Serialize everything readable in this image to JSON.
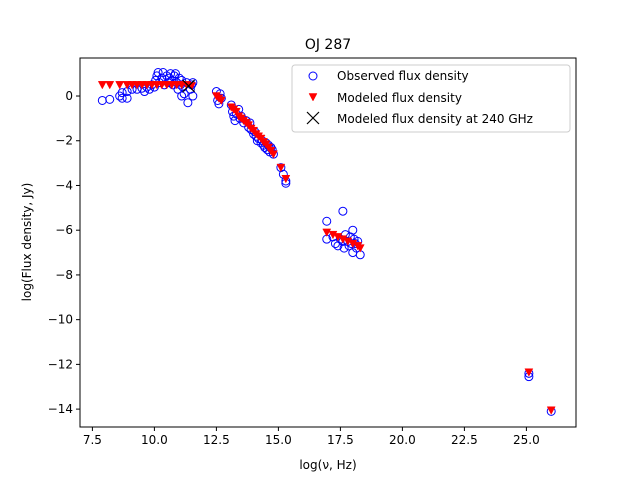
{
  "chart_data": {
    "type": "scatter",
    "title": "OJ 287",
    "xlabel": "log(ν, Hz)",
    "ylabel": "log(Flux density, Jy)",
    "xlim": [
      7.0,
      27.0
    ],
    "ylim": [
      -14.8,
      1.7
    ],
    "xticks": [
      7.5,
      10.0,
      12.5,
      15.0,
      17.5,
      20.0,
      22.5,
      25.0
    ],
    "yticks": [
      0,
      -2,
      -4,
      -6,
      -8,
      -10,
      -12,
      -14
    ],
    "grid": false,
    "legend_position": "top-right",
    "series": [
      {
        "name": "Observed flux density",
        "marker": "open-circle",
        "color": "#0000ff",
        "points": [
          [
            7.9,
            -0.2
          ],
          [
            8.2,
            -0.15
          ],
          [
            8.6,
            0.0
          ],
          [
            8.7,
            -0.1
          ],
          [
            8.9,
            -0.1
          ],
          [
            8.7,
            0.15
          ],
          [
            8.9,
            0.2
          ],
          [
            9.1,
            0.3
          ],
          [
            9.3,
            0.3
          ],
          [
            9.5,
            0.35
          ],
          [
            9.6,
            0.2
          ],
          [
            9.7,
            0.4
          ],
          [
            9.8,
            0.3
          ],
          [
            9.9,
            0.5
          ],
          [
            10.0,
            0.4
          ],
          [
            10.05,
            0.7
          ],
          [
            10.1,
            0.9
          ],
          [
            10.15,
            1.05
          ],
          [
            10.2,
            0.6
          ],
          [
            10.3,
            0.8
          ],
          [
            10.35,
            1.05
          ],
          [
            10.4,
            0.5
          ],
          [
            10.5,
            0.9
          ],
          [
            10.55,
            0.6
          ],
          [
            10.6,
            0.8
          ],
          [
            10.65,
            1.0
          ],
          [
            10.7,
            0.7
          ],
          [
            10.75,
            0.5
          ],
          [
            10.8,
            0.9
          ],
          [
            10.85,
            1.0
          ],
          [
            10.9,
            0.6
          ],
          [
            11.0,
            0.8
          ],
          [
            11.05,
            0.5
          ],
          [
            11.1,
            0.7
          ],
          [
            11.15,
            0.4
          ],
          [
            11.2,
            0.1
          ],
          [
            11.3,
            0.6
          ],
          [
            11.35,
            -0.3
          ],
          [
            11.45,
            0.3
          ],
          [
            11.5,
            0.5
          ],
          [
            11.55,
            0.6
          ],
          [
            11.55,
            0.0
          ],
          [
            11.1,
            0.0
          ],
          [
            10.95,
            0.3
          ],
          [
            12.5,
            0.2
          ],
          [
            12.55,
            -0.2
          ],
          [
            12.6,
            -0.35
          ],
          [
            12.65,
            0.1
          ],
          [
            12.7,
            -0.1
          ],
          [
            13.1,
            -0.4
          ],
          [
            13.15,
            -0.7
          ],
          [
            13.2,
            -0.9
          ],
          [
            13.25,
            -1.1
          ],
          [
            13.3,
            -0.8
          ],
          [
            13.4,
            -0.6
          ],
          [
            13.45,
            -1.0
          ],
          [
            13.5,
            -0.9
          ],
          [
            13.6,
            -1.2
          ],
          [
            13.7,
            -1.1
          ],
          [
            13.8,
            -1.4
          ],
          [
            13.85,
            -1.2
          ],
          [
            13.9,
            -1.5
          ],
          [
            14.0,
            -1.7
          ],
          [
            14.05,
            -1.6
          ],
          [
            14.1,
            -1.8
          ],
          [
            14.15,
            -2.0
          ],
          [
            14.2,
            -1.9
          ],
          [
            14.3,
            -2.1
          ],
          [
            14.35,
            -2.0
          ],
          [
            14.4,
            -2.2
          ],
          [
            14.45,
            -2.3
          ],
          [
            14.5,
            -2.1
          ],
          [
            14.55,
            -2.4
          ],
          [
            14.6,
            -2.2
          ],
          [
            14.65,
            -2.5
          ],
          [
            14.7,
            -2.3
          ],
          [
            14.75,
            -2.4
          ],
          [
            14.8,
            -2.6
          ],
          [
            15.1,
            -3.2
          ],
          [
            15.2,
            -3.5
          ],
          [
            15.3,
            -3.8
          ],
          [
            15.3,
            -3.9
          ],
          [
            16.95,
            -5.6
          ],
          [
            16.95,
            -6.4
          ],
          [
            17.2,
            -6.3
          ],
          [
            17.3,
            -6.6
          ],
          [
            17.4,
            -6.7
          ],
          [
            17.5,
            -6.4
          ],
          [
            17.6,
            -5.15
          ],
          [
            17.6,
            -6.5
          ],
          [
            17.65,
            -6.8
          ],
          [
            17.7,
            -6.2
          ],
          [
            17.8,
            -6.5
          ],
          [
            17.85,
            -6.7
          ],
          [
            17.9,
            -6.3
          ],
          [
            17.95,
            -6.6
          ],
          [
            18.0,
            -6.0
          ],
          [
            18.05,
            -6.4
          ],
          [
            18.1,
            -6.6
          ],
          [
            18.15,
            -6.8
          ],
          [
            18.2,
            -6.5
          ],
          [
            18.3,
            -7.1
          ],
          [
            18.0,
            -7.0
          ],
          [
            25.1,
            -12.4
          ],
          [
            25.1,
            -12.55
          ],
          [
            26.0,
            -14.1
          ]
        ]
      },
      {
        "name": "Modeled flux density",
        "marker": "down-triangle",
        "color": "#ff0000",
        "points": [
          [
            7.9,
            0.5
          ],
          [
            8.2,
            0.5
          ],
          [
            8.6,
            0.5
          ],
          [
            8.9,
            0.5
          ],
          [
            9.1,
            0.5
          ],
          [
            9.3,
            0.5
          ],
          [
            9.5,
            0.5
          ],
          [
            9.7,
            0.5
          ],
          [
            9.9,
            0.5
          ],
          [
            10.1,
            0.5
          ],
          [
            10.3,
            0.5
          ],
          [
            10.5,
            0.5
          ],
          [
            10.7,
            0.5
          ],
          [
            10.9,
            0.5
          ],
          [
            11.1,
            0.5
          ],
          [
            11.3,
            0.5
          ],
          [
            11.5,
            0.45
          ],
          [
            12.5,
            0.0
          ],
          [
            12.6,
            -0.1
          ],
          [
            12.7,
            -0.2
          ],
          [
            13.1,
            -0.5
          ],
          [
            13.2,
            -0.6
          ],
          [
            13.3,
            -0.7
          ],
          [
            13.4,
            -0.9
          ],
          [
            13.5,
            -1.0
          ],
          [
            13.6,
            -1.1
          ],
          [
            13.7,
            -1.2
          ],
          [
            13.8,
            -1.3
          ],
          [
            13.9,
            -1.45
          ],
          [
            14.0,
            -1.55
          ],
          [
            14.1,
            -1.7
          ],
          [
            14.2,
            -1.8
          ],
          [
            14.3,
            -1.9
          ],
          [
            14.4,
            -2.05
          ],
          [
            14.5,
            -2.15
          ],
          [
            14.6,
            -2.3
          ],
          [
            14.7,
            -2.45
          ],
          [
            14.8,
            -2.6
          ],
          [
            15.1,
            -3.2
          ],
          [
            15.3,
            -3.7
          ],
          [
            16.95,
            -6.1
          ],
          [
            17.2,
            -6.2
          ],
          [
            17.4,
            -6.3
          ],
          [
            17.6,
            -6.4
          ],
          [
            17.8,
            -6.5
          ],
          [
            18.0,
            -6.6
          ],
          [
            18.2,
            -6.7
          ],
          [
            18.3,
            -6.8
          ],
          [
            25.1,
            -12.35
          ],
          [
            26.0,
            -14.05
          ]
        ]
      },
      {
        "name": "Modeled flux density at 240 GHz",
        "marker": "x",
        "color": "#000000",
        "points": [
          [
            11.38,
            0.45
          ]
        ]
      }
    ]
  }
}
